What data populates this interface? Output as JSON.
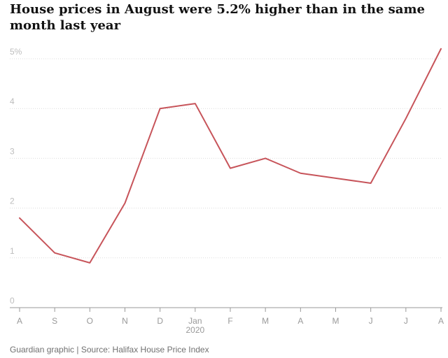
{
  "chart_data": {
    "type": "line",
    "title": "House prices in August were 5.2% higher than in the same month last year",
    "categories": [
      "A",
      "S",
      "O",
      "N",
      "D",
      "Jan",
      "F",
      "M",
      "A",
      "M",
      "J",
      "J",
      "A"
    ],
    "year_label": "2020",
    "y_ticks": [
      "0",
      "1",
      "2",
      "3",
      "4",
      "5%"
    ],
    "y_tick_values": [
      0,
      1,
      2,
      3,
      4,
      5
    ],
    "ylim": [
      0,
      5
    ],
    "series": [
      {
        "values": [
          1.8,
          1.1,
          0.9,
          2.1,
          4.0,
          4.1,
          2.8,
          3.0,
          2.7,
          2.6,
          2.5,
          3.8,
          5.2
        ]
      }
    ],
    "grid": true,
    "colors": {
      "line": "#c7545a",
      "grid": "#dcdcdc",
      "axis": "#999999",
      "tick_text": "#bdbdbd",
      "x_text": "#999999"
    },
    "source": "Guardian graphic | Source: Halifax House Price Index"
  }
}
